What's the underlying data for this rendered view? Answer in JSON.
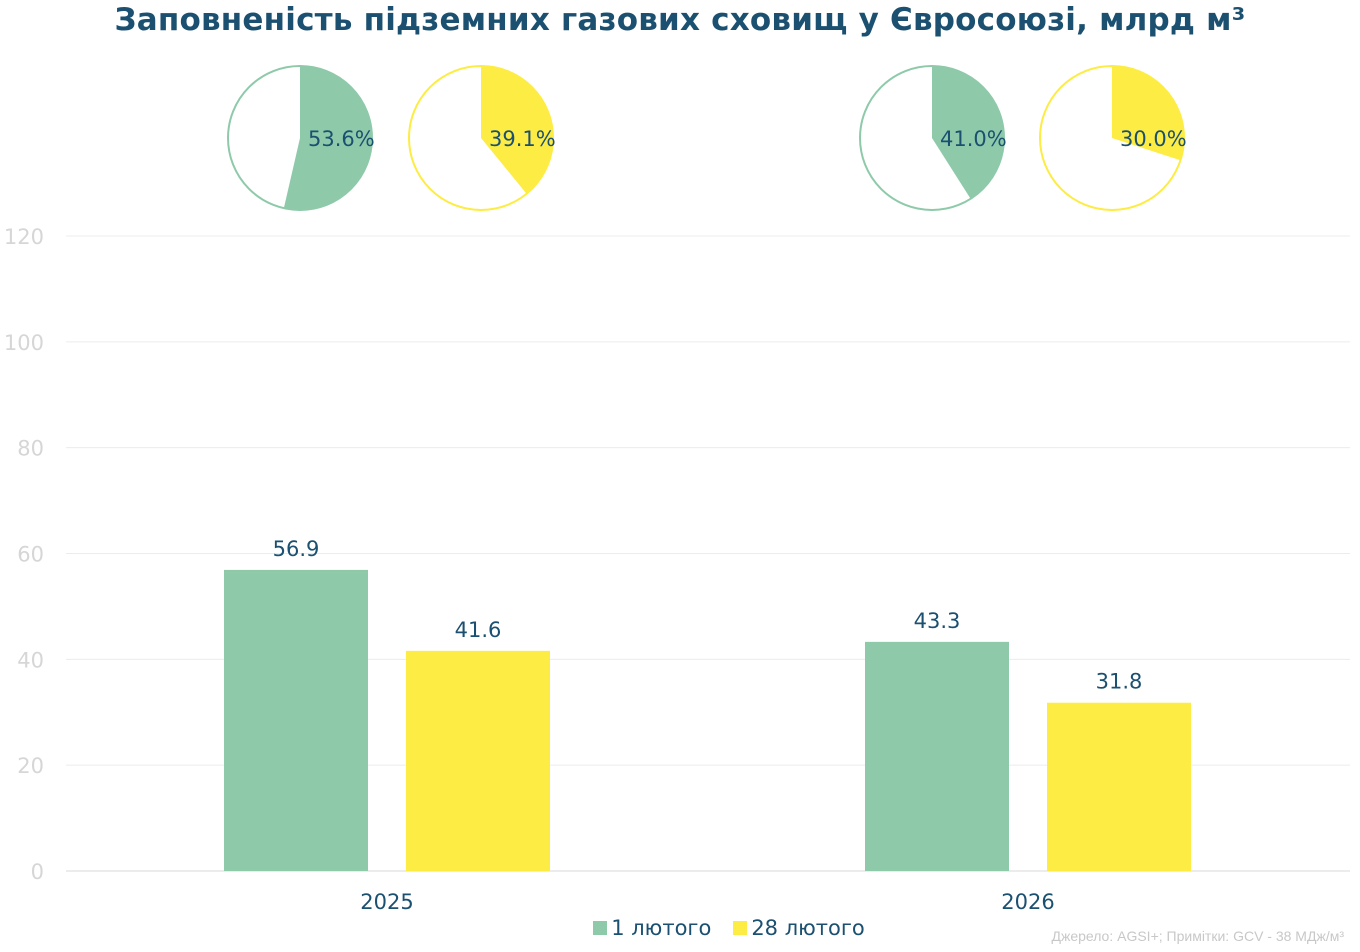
{
  "title": "Заповненість підземних газових сховищ у Євросоюзі, млрд м³",
  "source": "Джерело: AGSI+; Примітки: GCV - 38 МДж/м³",
  "colors": {
    "series1": "#8ecaaa",
    "series2": "#fdec43",
    "text": "#1b5070",
    "grid": "#ececec",
    "axis": "#d9d9d9"
  },
  "chart_data": {
    "type": "bar",
    "categories": [
      "2025",
      "2026"
    ],
    "series": [
      {
        "name": "1 лютого",
        "values": [
          56.9,
          43.3
        ],
        "fill_pct_labels": [
          "53.6%",
          "41.0%"
        ],
        "fill_pct": [
          53.6,
          41.0
        ]
      },
      {
        "name": "28 лютого",
        "values": [
          41.6,
          31.8
        ],
        "fill_pct_labels": [
          "39.1%",
          "30.0%"
        ],
        "fill_pct": [
          39.1,
          30.0
        ]
      }
    ],
    "value_labels": [
      [
        "56.9",
        "43.3"
      ],
      [
        "41.6",
        "31.8"
      ]
    ],
    "yticks": [
      "0",
      "20",
      "40",
      "60",
      "80",
      "100",
      "120"
    ],
    "ylim": [
      0,
      120
    ],
    "grid": true,
    "legend": "bottom",
    "pies": "above each bar, showing storage fill percentage"
  }
}
